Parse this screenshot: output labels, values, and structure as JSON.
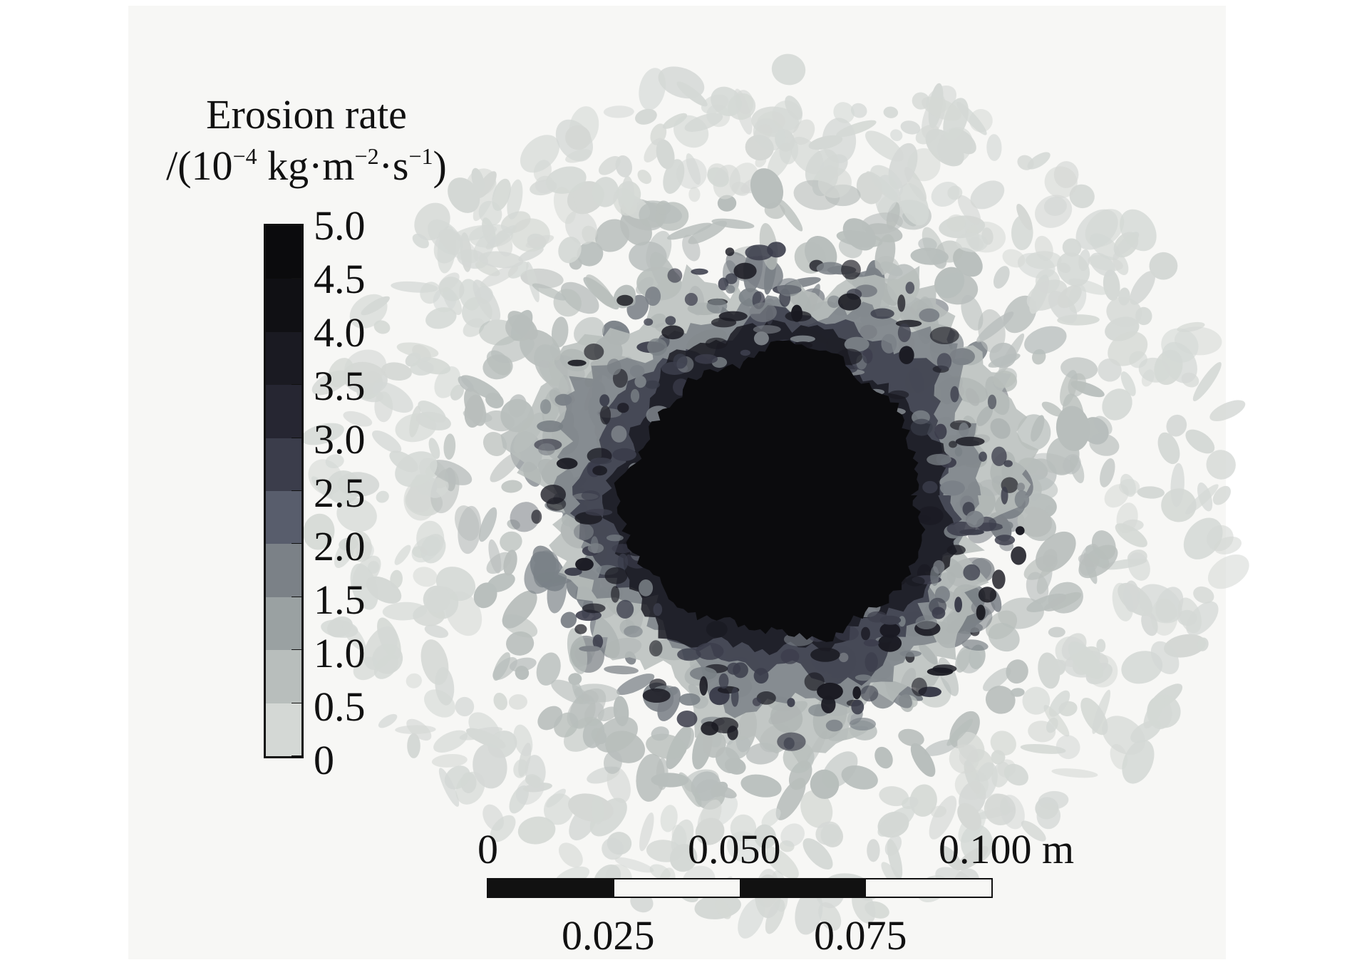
{
  "legend": {
    "title_line1": "Erosion rate",
    "title_prefix": "/(10",
    "exp_base": "−4",
    "unit_kg": " kg·m",
    "exp_m": "−2",
    "unit_s": "·s",
    "exp_s": "−1",
    "title_suffix": ")",
    "ticks": [
      "5.0",
      "4.5",
      "4.0",
      "3.5",
      "3.0",
      "2.5",
      "2.0",
      "1.5",
      "1.0",
      "0.5",
      "0"
    ],
    "colors": [
      "#0b0b0d",
      "#101014",
      "#1a1a22",
      "#262632",
      "#3b3d4b",
      "#585d6c",
      "#7b8187",
      "#9aa1a2",
      "#b8bebc",
      "#d4d8d5",
      "#eff1ef",
      "#f7f7f5"
    ]
  },
  "scale": {
    "top_labels": [
      "0",
      "0.050",
      "0.100 m"
    ],
    "bottom_labels": [
      "0.025",
      "0.075"
    ],
    "segment_colors": [
      "#111111",
      "#f7f7f5",
      "#111111",
      "#f7f7f5"
    ]
  },
  "map": {
    "background": "#f7f7f5",
    "core_color": "#0b0b0d",
    "ring_colors": [
      "#1a1a22",
      "#3b3d4b",
      "#7b8187",
      "#b8bebc",
      "#d4d8d5"
    ]
  }
}
